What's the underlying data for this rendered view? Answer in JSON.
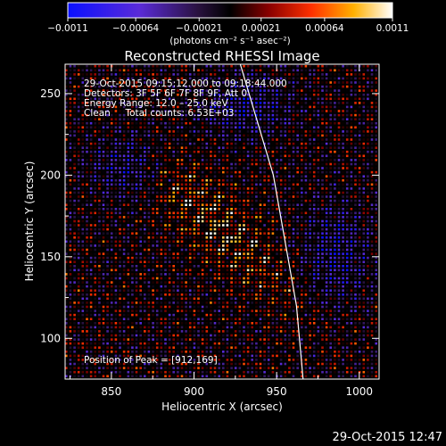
{
  "colorbar": {
    "ticks": [
      {
        "value": -0.0011,
        "label": "−0.0011"
      },
      {
        "value": -0.00064,
        "label": "−0.00064"
      },
      {
        "value": -0.00021,
        "label": "−0.00021"
      },
      {
        "value": 0.00021,
        "label": "0.00021"
      },
      {
        "value": 0.00064,
        "label": "0.00064"
      },
      {
        "value": 0.0011,
        "label": "0.0011"
      }
    ],
    "range": [
      -0.0011,
      0.0011
    ],
    "unit_label": "(photons cm⁻² s⁻¹ asec⁻²)"
  },
  "chart_data": {
    "type": "heatmap",
    "title": "Reconstructed RHESSI Image",
    "xlabel": "Heliocentric X (arcsec)",
    "ylabel": "Heliocentric Y (arcsec)",
    "xlim": [
      822,
      1012
    ],
    "ylim": [
      75,
      268
    ],
    "xticks": [
      850,
      900,
      950,
      1000
    ],
    "yticks": [
      100,
      150,
      200,
      250
    ],
    "colormap": "blue-purple-black-red-yellow-white",
    "peak": {
      "x": 912,
      "y": 169
    },
    "limb_line": [
      [
        928,
        268
      ],
      [
        948,
        200
      ],
      [
        962,
        120
      ],
      [
        966,
        75
      ]
    ],
    "annotations": [
      "29-Oct-2015 09:15:12.000 to 09:18:44.000",
      "Detectors: 3F 5F 6F 7F 8F 9F, Att 0",
      "Energy Range: 12.0 – 25.0 keV",
      "Clean     Total counts: 6.53E+03",
      "Position of Peak = [912,169]"
    ]
  },
  "footer": {
    "timestamp": "29-Oct-2015 12:47"
  }
}
